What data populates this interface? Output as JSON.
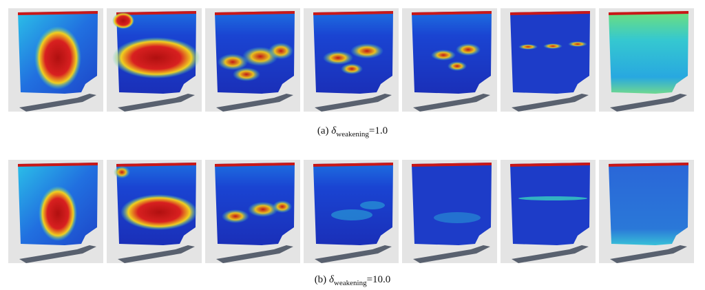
{
  "figure": {
    "rows": [
      {
        "caption": {
          "label": "(a)",
          "symbol": "δ",
          "subscript": "weakening",
          "value": "=1.0"
        }
      },
      {
        "caption": {
          "label": "(b)",
          "symbol": "δ",
          "subscript": "weakening",
          "value": "=10.0"
        }
      }
    ]
  }
}
